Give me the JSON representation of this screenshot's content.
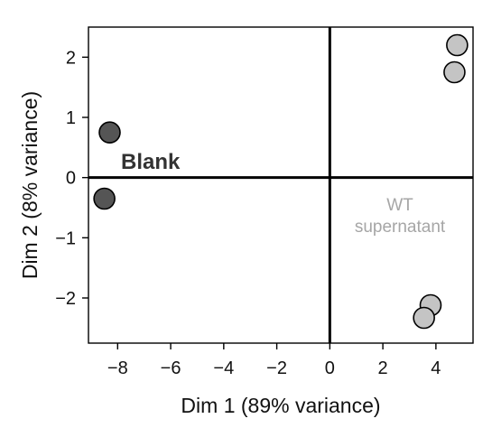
{
  "chart_data": {
    "type": "scatter",
    "title": "",
    "xlabel": "Dim 1 (89% variance)",
    "ylabel": "Dim 2 (8% variance)",
    "xlim": [
      -9.1,
      5.4
    ],
    "ylim": [
      -2.75,
      2.5
    ],
    "xticks": [
      -8,
      -6,
      -4,
      -2,
      0,
      2,
      4
    ],
    "yticks": [
      -2,
      -1,
      0,
      1,
      2
    ],
    "xtick_labels": [
      "−8",
      "−6",
      "−4",
      "−2",
      "0",
      "2",
      "4"
    ],
    "ytick_labels": [
      "−2",
      "−1",
      "0",
      "1",
      "2"
    ],
    "grid": false,
    "series": [
      {
        "name": "Blank",
        "color": "#555555",
        "points": [
          {
            "x": -8.3,
            "y": 0.75
          },
          {
            "x": -8.5,
            "y": -0.35
          }
        ]
      },
      {
        "name": "WT supernatant",
        "color": "#c4c4c4",
        "points": [
          {
            "x": 4.8,
            "y": 2.2
          },
          {
            "x": 4.7,
            "y": 1.75
          },
          {
            "x": 3.8,
            "y": -2.12
          },
          {
            "x": 3.55,
            "y": -2.33
          }
        ]
      }
    ],
    "annotations": [
      {
        "series": 0,
        "lines": [
          "Blank"
        ],
        "color": "#333333"
      },
      {
        "series": 1,
        "lines": [
          "WT",
          "supernatant"
        ],
        "color": "#a6a6a6"
      }
    ]
  }
}
